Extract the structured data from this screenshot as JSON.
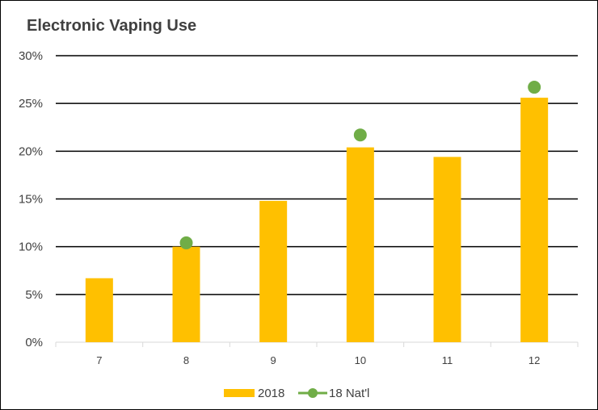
{
  "chart_data": {
    "type": "bar",
    "title": "Electronic Vaping Use",
    "xlabel": "",
    "ylabel": "",
    "categories": [
      "7",
      "8",
      "9",
      "10",
      "11",
      "12"
    ],
    "ylim": [
      0,
      30
    ],
    "yticks": [
      "0%",
      "5%",
      "10%",
      "15%",
      "20%",
      "25%",
      "30%"
    ],
    "grid": true,
    "legend": "bottom",
    "series": [
      {
        "name": "2018",
        "kind": "bar",
        "color": "#FFC000",
        "values": [
          6.7,
          10.0,
          14.8,
          20.4,
          19.4,
          25.6
        ]
      },
      {
        "name": "18 Nat'l",
        "kind": "marker",
        "color": "#70AD47",
        "values": [
          null,
          10.4,
          null,
          21.7,
          null,
          26.7
        ]
      }
    ]
  }
}
